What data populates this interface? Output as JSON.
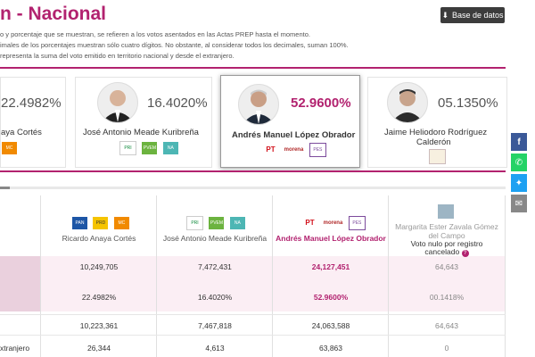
{
  "header": {
    "title": "n - Nacional",
    "db_button": "Base de datos",
    "desc": [
      "o y porcentaje que se muestran, se refieren a los votos asentados en las Actas PREP hasta el momento.",
      "imales de los porcentajes muestran sólo cuatro dígitos. No obstante, al considerar todos los decimales, suman 100%.",
      "representa la suma del voto emitido en territorio nacional y desde el extranjero."
    ]
  },
  "cards": [
    {
      "pct": "22.4982%",
      "name": "aya Cortés"
    },
    {
      "pct": "16.4020%",
      "name": "José Antonio Meade Kuribreña"
    },
    {
      "pct": "52.9600%",
      "name": "Andrés Manuel López Obrador"
    },
    {
      "pct": "05.1350%",
      "name": "Jaime Heliodoro Rodríguez",
      "name2": "Calderón"
    }
  ],
  "logos": {
    "pan": "PAN",
    "prd": "PRD",
    "mc": "MC",
    "pri": "PRI",
    "pve": "PVEM",
    "pna": "NA",
    "pt": "PT",
    "morena": "morena",
    "pes": "PES"
  },
  "table": {
    "headers": [
      "Ricardo Anaya Cortés",
      "José Antonio Meade Kuribreña",
      "Andrés Manuel López Obrador",
      "Margarita Ester Zavala Gómez",
      "del Campo",
      "Voto nulo por registro",
      "cancelado"
    ],
    "totals": [
      "10,249,705",
      "7,472,431",
      "24,127,451",
      "64,643"
    ],
    "percents": [
      "22.4982%",
      "16.4020%",
      "52.9600%",
      "00.1418%"
    ],
    "row_national": [
      "10,223,361",
      "7,467,818",
      "24,063,588",
      "64,643"
    ],
    "row_abroad_label": "xtranjero",
    "row_abroad": [
      "26,344",
      "4,613",
      "63,863",
      "0"
    ]
  }
}
